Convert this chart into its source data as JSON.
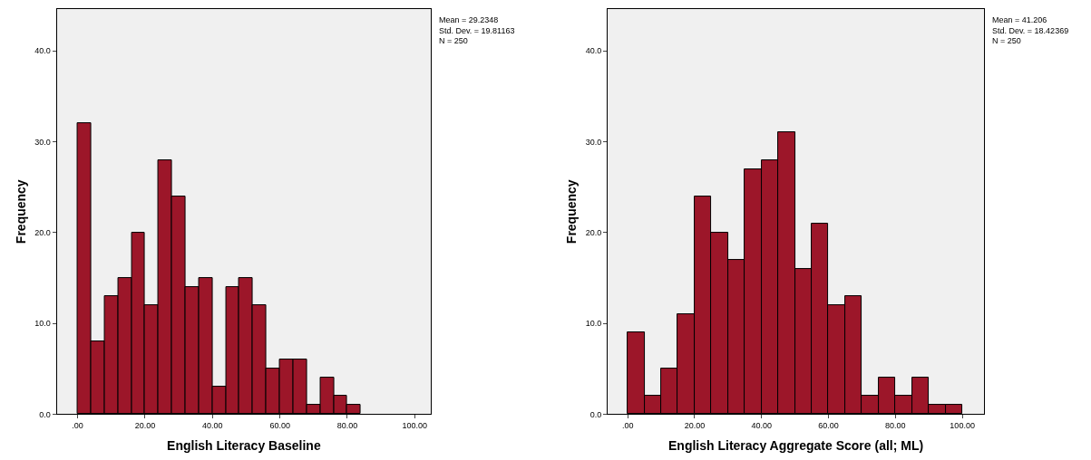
{
  "chart_data": [
    {
      "type": "histogram",
      "xlabel": "English Literacy Baseline",
      "ylabel": "Frequency",
      "color": "#9c1629",
      "bins": [
        0,
        4,
        8,
        12,
        16,
        20,
        24,
        28,
        32,
        36,
        40,
        44,
        48,
        52,
        56,
        60,
        64,
        68,
        72,
        76,
        80,
        84
      ],
      "values": [
        32,
        8,
        13,
        15,
        20,
        12,
        28,
        24,
        14,
        15,
        3,
        14,
        15,
        12,
        5,
        6,
        6,
        1,
        4,
        2,
        1
      ],
      "xlim": [
        -6.2,
        104.8
      ],
      "xticks": [
        {
          "value": 0,
          "label": ".00"
        },
        {
          "value": 20,
          "label": "20.00"
        },
        {
          "value": 40,
          "label": "40.00"
        },
        {
          "value": 60,
          "label": "60.00"
        },
        {
          "value": 80,
          "label": "80.00"
        },
        {
          "value": 100,
          "label": "100.00"
        }
      ],
      "ylim": [
        0,
        44.6
      ],
      "yticks": [
        {
          "value": 0,
          "label": "0.0"
        },
        {
          "value": 10,
          "label": "10.0"
        },
        {
          "value": 20,
          "label": "20.0"
        },
        {
          "value": 30,
          "label": "30.0"
        },
        {
          "value": 40,
          "label": "40.0"
        }
      ],
      "grid": false,
      "annotations": [
        "Mean = 29.2348",
        "Std. Dev. = 19.81163",
        "N = 250"
      ]
    },
    {
      "type": "histogram",
      "xlabel": "English Literacy Aggregate Score (all; ML)",
      "ylabel": "Frequency",
      "color": "#9c1629",
      "bins": [
        0,
        5,
        10,
        15,
        20,
        25,
        30,
        35,
        40,
        45,
        50,
        55,
        60,
        65,
        70,
        75,
        80,
        85,
        90,
        95,
        100
      ],
      "values": [
        9,
        2,
        5,
        11,
        24,
        20,
        17,
        27,
        28,
        31,
        16,
        21,
        12,
        13,
        2,
        4,
        2,
        4,
        1,
        1
      ],
      "xlim": [
        -6,
        106.5
      ],
      "xticks": [
        {
          "value": 0,
          "label": ".00"
        },
        {
          "value": 20,
          "label": "20.00"
        },
        {
          "value": 40,
          "label": "40.00"
        },
        {
          "value": 60,
          "label": "60.00"
        },
        {
          "value": 80,
          "label": "80.00"
        },
        {
          "value": 100,
          "label": "100.00"
        }
      ],
      "ylim": [
        0,
        44.6
      ],
      "yticks": [
        {
          "value": 0,
          "label": "0.0"
        },
        {
          "value": 10,
          "label": "10.0"
        },
        {
          "value": 20,
          "label": "20.0"
        },
        {
          "value": 30,
          "label": "30.0"
        },
        {
          "value": 40,
          "label": "40.0"
        }
      ],
      "grid": false,
      "annotations": [
        "Mean = 41.206",
        "Std. Dev. = 18.42369",
        "N = 250"
      ]
    }
  ]
}
